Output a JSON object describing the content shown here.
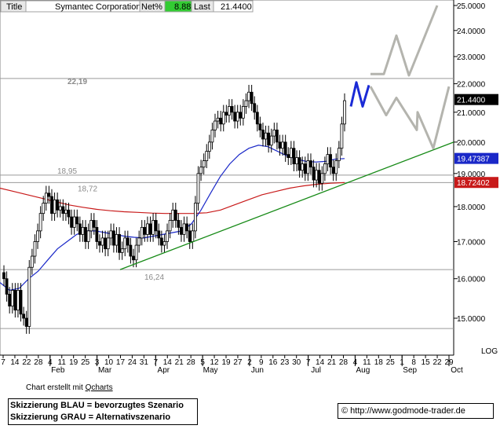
{
  "header": {
    "title_label": "Title",
    "name": "Symantec Corporation",
    "net_label": "Net%",
    "net_value": "8.88",
    "last_label": "Last",
    "last_value": "21.4400"
  },
  "colors": {
    "candle_up": "#ffffff",
    "candle_down": "#000000",
    "ma_short": "#1a28c8",
    "ma_long": "#c81a1a",
    "trendline": "#168a16",
    "scenario_blue": "#1a2ad6",
    "scenario_grey": "#b4b4ae",
    "net_badge": "#33cc33"
  },
  "chart_data": {
    "type": "candlestick",
    "scale": "log",
    "ylim": [
      14.2,
      25.1
    ],
    "yticks": [
      "25.0000",
      "24.0000",
      "23.0000",
      "22.0000",
      "21.0000",
      "20.0000",
      "19.0000",
      "18.0000",
      "17.0000",
      "16.0000",
      "15.0000"
    ],
    "ytick_values": [
      25,
      24,
      23,
      22,
      21,
      20,
      19,
      18,
      17,
      16,
      15
    ],
    "scale_label": "LOG",
    "xticks": [
      "7",
      "14",
      "22",
      "28",
      "4",
      "11",
      "19",
      "25",
      "3",
      "10",
      "17",
      "24",
      "31",
      "7",
      "14",
      "21",
      "28",
      "5",
      "12",
      "19",
      "27",
      "2",
      "9",
      "16",
      "23",
      "30",
      "7",
      "14",
      "21",
      "28",
      "4",
      "11",
      "18",
      "25",
      "1",
      "8",
      "15",
      "22",
      "29"
    ],
    "months": [
      "Feb",
      "Mar",
      "Apr",
      "May",
      "Jun",
      "Jul",
      "Aug",
      "Sep",
      "Oct"
    ],
    "closes": [
      16.0,
      15.6,
      15.3,
      15.7,
      15.2,
      15.7,
      15.1,
      15.0,
      14.8,
      16.3,
      16.6,
      17.0,
      17.3,
      17.8,
      18.1,
      18.4,
      18.3,
      17.8,
      18.2,
      17.9,
      18.0,
      17.8,
      17.9,
      17.7,
      17.4,
      17.7,
      17.5,
      17.2,
      17.4,
      17.0,
      17.3,
      17.6,
      17.4,
      17.0,
      16.9,
      17.1,
      16.8,
      17.1,
      17.3,
      16.9,
      17.2,
      16.7,
      16.8,
      17.1,
      16.9,
      16.6,
      16.5,
      16.9,
      17.1,
      17.4,
      17.2,
      17.5,
      17.2,
      17.6,
      17.3,
      17.1,
      16.9,
      17.0,
      17.3,
      17.6,
      17.9,
      17.6,
      17.4,
      17.2,
      17.5,
      17.3,
      17.0,
      17.3,
      18.1,
      19.0,
      19.2,
      19.4,
      19.7,
      20.0,
      20.4,
      20.7,
      20.8,
      20.6,
      21.0,
      20.9,
      21.2,
      21.0,
      20.7,
      21.0,
      20.8,
      21.2,
      21.4,
      21.7,
      21.3,
      21.0,
      20.6,
      20.4,
      20.1,
      20.3,
      19.9,
      20.2,
      20.4,
      20.0,
      19.8,
      20.0,
      19.6,
      19.5,
      19.8,
      19.3,
      19.5,
      19.1,
      19.3,
      19.0,
      19.4,
      19.2,
      18.8,
      19.1,
      18.7,
      19.0,
      19.3,
      19.6,
      19.2,
      19.0,
      19.4,
      19.8,
      20.6,
      21.4
    ],
    "ma_short": [
      15.9,
      15.7,
      15.75,
      16.0,
      16.2,
      16.5,
      16.8,
      17.0,
      17.2,
      17.3,
      17.3,
      17.25,
      17.2,
      17.15,
      17.12,
      17.1,
      17.15,
      17.2,
      17.25,
      17.3,
      17.5,
      17.9,
      18.4,
      18.9,
      19.3,
      19.6,
      19.8,
      19.9,
      19.85,
      19.7,
      19.55,
      19.45,
      19.38,
      19.36,
      19.38,
      19.45,
      19.47
    ],
    "ma_long": [
      18.55,
      18.45,
      18.35,
      18.25,
      18.15,
      18.05,
      17.98,
      17.92,
      17.88,
      17.85,
      17.83,
      17.81,
      17.8,
      17.8,
      17.8,
      17.82,
      17.9,
      18.05,
      18.2,
      18.35,
      18.45,
      18.55,
      18.62,
      18.67,
      18.7,
      18.72
    ],
    "last_price": 21.44,
    "last_price_label": "21.4400",
    "ma_short_last": 19.47387,
    "ma_short_label": "19.47387",
    "ma_long_last": 18.72402,
    "ma_long_label": "18.72402",
    "horizontal_lines": [
      22.19,
      18.95,
      18.72,
      16.24,
      14.75
    ],
    "annotations": [
      {
        "text": "22,19",
        "value": 22.19
      },
      {
        "text": "18,95",
        "value": 18.95
      },
      {
        "text": "18,72",
        "value": 18.72
      },
      {
        "text": "16,24",
        "value": 16.24
      }
    ],
    "trendline": [
      [
        16.24
      ],
      [
        20.0
      ]
    ],
    "scenario_blue": [
      21.2,
      22.05,
      21.2,
      21.95
    ],
    "scenario_grey_a": [
      22.35,
      22.35,
      23.8,
      22.3,
      25.0
    ],
    "scenario_grey_b": [
      21.9,
      20.9,
      21.5,
      20.4,
      21.0,
      19.8,
      21.9
    ]
  },
  "footer": {
    "credit_prefix": "Chart erstellt mit ",
    "credit_link": "Qcharts",
    "legend_blue": "Skizzierung BLAU = bevorzugtes Szenario",
    "legend_grey": "Skizzierung GRAU = Alternativszenario",
    "copyright_symbol": "©",
    "url": "http://www.godmode-trader.de"
  }
}
